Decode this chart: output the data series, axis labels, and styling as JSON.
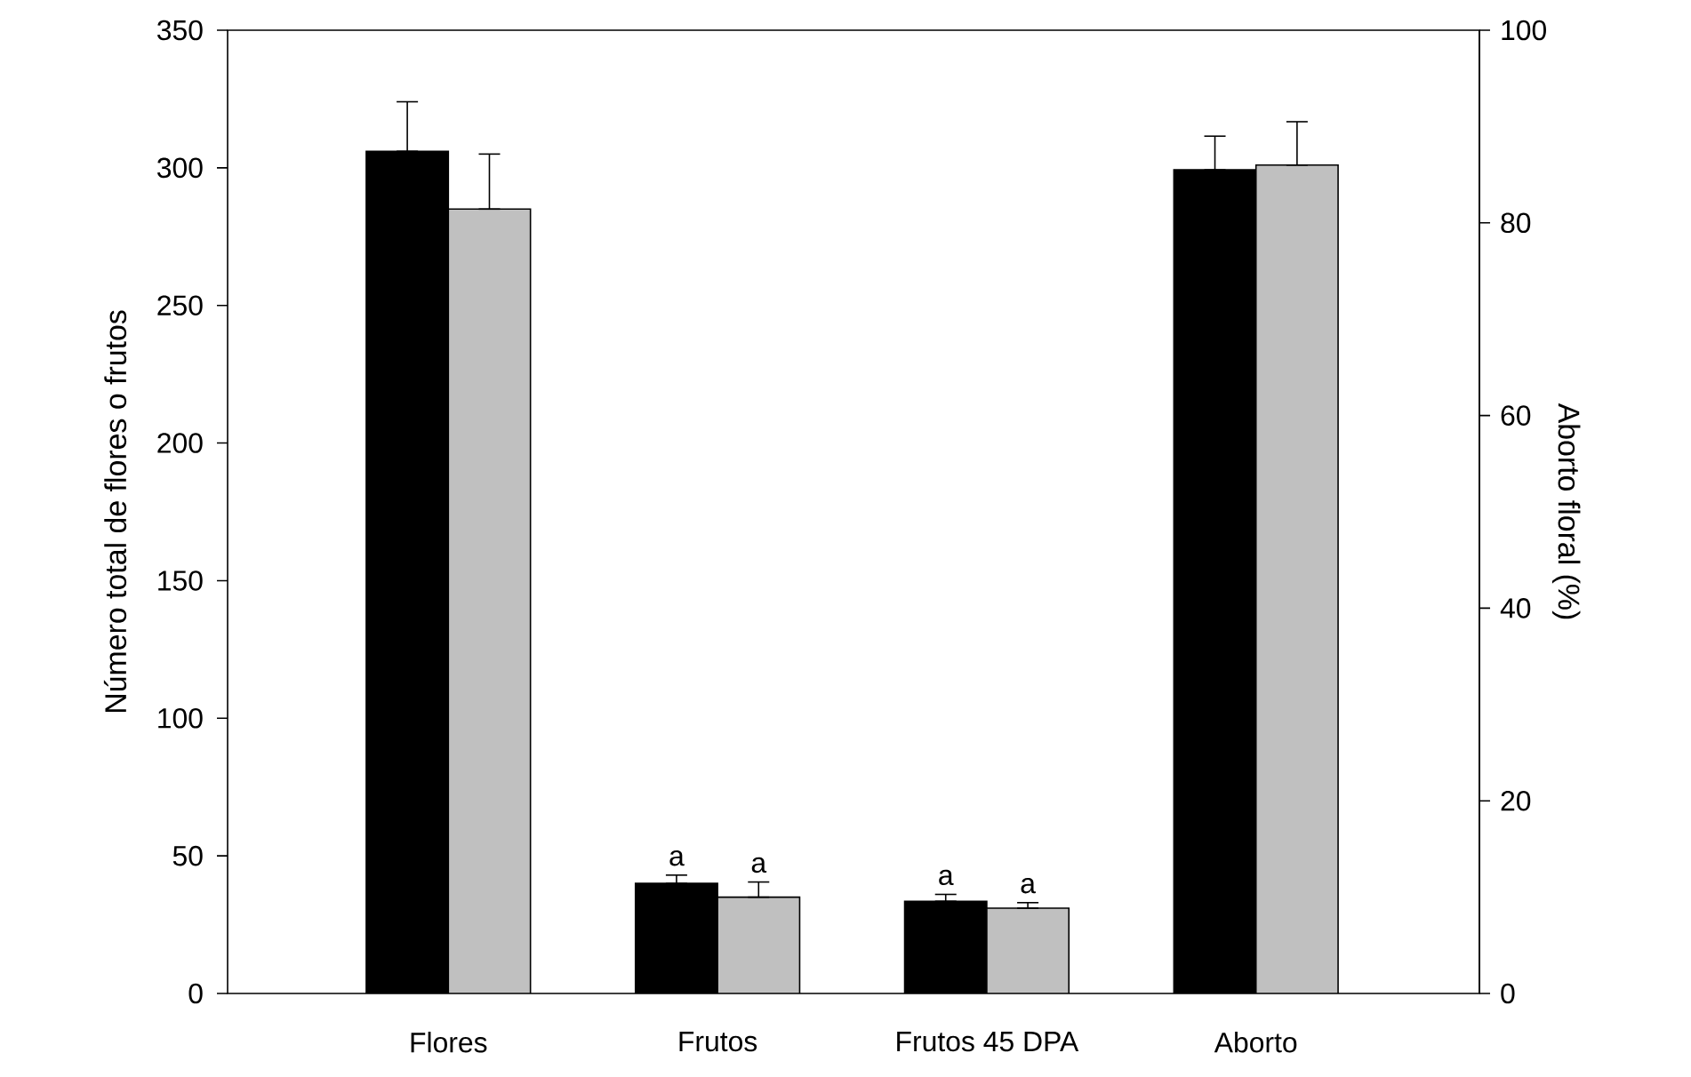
{
  "chart_data": {
    "type": "bar",
    "ylabel": "Número total de flores o frutos",
    "y2label": "Aborto floral (%)",
    "categories": [
      "Flores",
      "Frutos",
      "Frutos 45 DPA",
      "Aborto"
    ],
    "series": [
      {
        "color": "#000000",
        "values": [
          306,
          40,
          33.5,
          null
        ],
        "errors": [
          [
            306,
            324
          ],
          [
            40,
            43
          ],
          [
            33.5,
            36
          ],
          null
        ]
      },
      {
        "color": "#c0c0c0",
        "values": [
          285,
          35,
          31,
          null
        ],
        "errors": [
          [
            285,
            305
          ],
          [
            35,
            40.5
          ],
          [
            31,
            33
          ],
          null
        ]
      },
      {
        "color": "#000000",
        "axis": "y2",
        "values": [
          null,
          null,
          null,
          85.5
        ],
        "errors": [
          null,
          null,
          null,
          [
            85.5,
            89
          ]
        ]
      },
      {
        "color": "#c0c0c0",
        "axis": "y2",
        "values": [
          null,
          null,
          null,
          86
        ],
        "errors": [
          null,
          null,
          null,
          [
            86,
            90.5
          ]
        ]
      }
    ],
    "ylim": [
      0,
      350
    ],
    "yticks": [
      0,
      50,
      100,
      150,
      200,
      250,
      300,
      350
    ],
    "y2lim": [
      0,
      100
    ],
    "y2ticks": [
      0,
      20,
      40,
      60,
      80,
      100
    ],
    "annotations": [
      {
        "text": "a",
        "x": "Frutos",
        "y": 43
      },
      {
        "text": "a",
        "x": "Frutos",
        "y": 40.5
      },
      {
        "text": "a",
        "x": "Frutos 45 DPA",
        "y": 36
      },
      {
        "text": "a",
        "x": "Frutos 45 DPA",
        "y": 33
      }
    ]
  }
}
